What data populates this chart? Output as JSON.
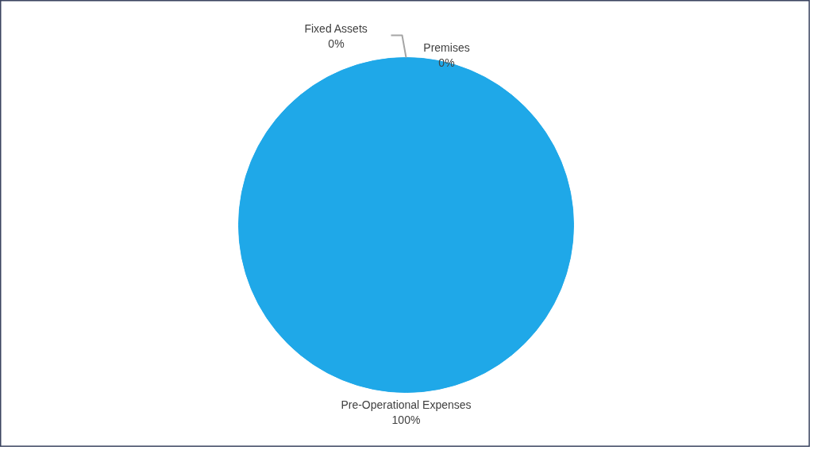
{
  "chart_data": {
    "type": "pie",
    "categories": [
      "Pre-Operational Expenses",
      "Fixed Assets",
      "Premises"
    ],
    "values": [
      100,
      0,
      0
    ],
    "colors": [
      "#1fa8e8",
      "#f47b20",
      "#a5a5a5"
    ],
    "value_labels": [
      "100%",
      "0%",
      "0%"
    ]
  }
}
